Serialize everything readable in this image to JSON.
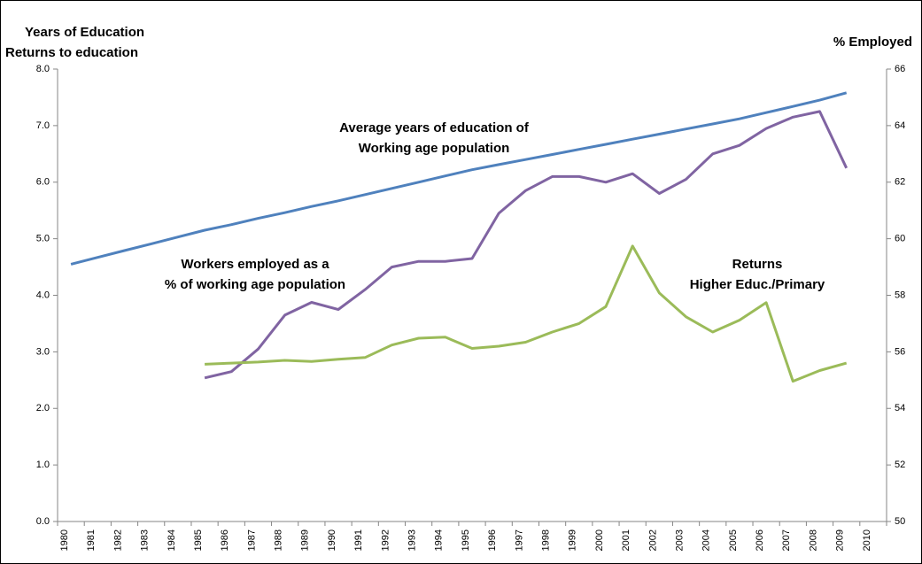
{
  "chart_data": {
    "type": "line",
    "y_axis_title": [
      "Years of Education",
      "Returns to education"
    ],
    "y2_axis_title": "% Employed",
    "categories": [
      "1980",
      "1981",
      "1982",
      "1983",
      "1984",
      "1985",
      "1986",
      "1987",
      "1988",
      "1989",
      "1990",
      "1991",
      "1992",
      "1993",
      "1994",
      "1995",
      "1996",
      "1997",
      "1998",
      "1999",
      "2000",
      "2001",
      "2002",
      "2003",
      "2004",
      "2005",
      "2006",
      "2007",
      "2008",
      "2009",
      "2010"
    ],
    "ylim": [
      0,
      8
    ],
    "yticks": [
      {
        "value": 0,
        "label": "0.0"
      },
      {
        "value": 1,
        "label": "1.0"
      },
      {
        "value": 2,
        "label": "2.0"
      },
      {
        "value": 3,
        "label": "3.0"
      },
      {
        "value": 4,
        "label": "4.0"
      },
      {
        "value": 5,
        "label": "5.0"
      },
      {
        "value": 6,
        "label": "6.0"
      },
      {
        "value": 7,
        "label": "7.0"
      },
      {
        "value": 8,
        "label": "8.0"
      }
    ],
    "y2lim": [
      50,
      66
    ],
    "y2ticks": [
      50,
      52,
      54,
      56,
      58,
      60,
      62,
      64,
      66
    ],
    "grid": false,
    "series": [
      {
        "color": "#4f81bd",
        "values": [
          4.55,
          4.67,
          4.79,
          4.91,
          5.03,
          5.15,
          5.25,
          5.36,
          5.46,
          5.57,
          5.67,
          5.78,
          5.89,
          6.0,
          6.11,
          6.22,
          6.31,
          6.4,
          6.49,
          6.58,
          6.67,
          6.76,
          6.85,
          6.94,
          7.03,
          7.12,
          7.23,
          7.34,
          7.45,
          7.58,
          null
        ]
      },
      {
        "color": "#8064a2",
        "axis": "y2",
        "values": [
          null,
          null,
          null,
          null,
          null,
          55.08,
          55.3,
          56.1,
          57.3,
          57.75,
          57.5,
          58.2,
          59.0,
          59.2,
          59.2,
          59.3,
          60.9,
          61.7,
          62.2,
          62.2,
          62.0,
          62.3,
          61.6,
          62.1,
          63.0,
          63.3,
          63.9,
          64.3,
          64.5,
          62.5,
          null
        ]
      },
      {
        "color": "#9bbb59",
        "values": [
          null,
          null,
          null,
          null,
          null,
          2.78,
          2.8,
          2.82,
          2.85,
          2.83,
          2.87,
          2.9,
          3.12,
          3.24,
          3.26,
          3.06,
          3.1,
          3.17,
          3.35,
          3.5,
          3.8,
          4.87,
          4.04,
          3.62,
          3.35,
          3.56,
          3.87,
          2.48,
          2.67,
          2.8,
          null
        ]
      }
    ],
    "annotations": [
      [
        "Average years of education of",
        "Working age population"
      ],
      [
        "Workers employed as a",
        "% of working age population"
      ],
      [
        "Returns",
        "Higher Educ./Primary"
      ]
    ]
  }
}
